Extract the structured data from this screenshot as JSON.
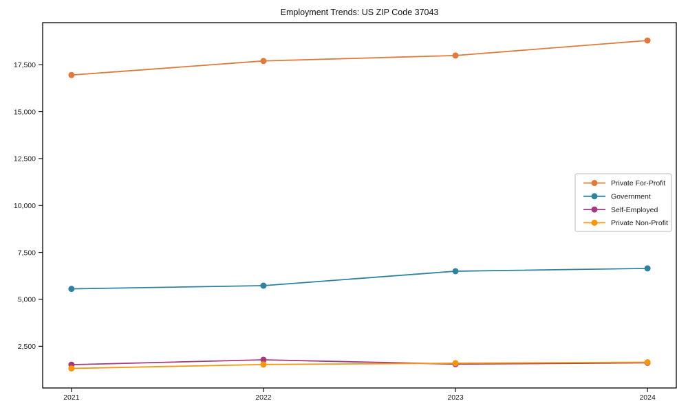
{
  "chart_data": {
    "type": "line",
    "title": "Employment Trends: US ZIP Code 37043",
    "xlabel": "",
    "ylabel": "",
    "x": [
      2021,
      2022,
      2023,
      2024
    ],
    "x_tick_labels": [
      "2021",
      "2022",
      "2023",
      "2024"
    ],
    "y_ticks": [
      2500,
      5000,
      7500,
      10000,
      12500,
      15000,
      17500
    ],
    "y_tick_labels": [
      "2,500",
      "5,000",
      "7,500",
      "10,000",
      "12,500",
      "15,000",
      "17,500"
    ],
    "xlim": [
      2020.85,
      2024.15
    ],
    "ylim": [
      280,
      19740
    ],
    "grid": false,
    "legend_position": "center right",
    "frame_color": "#000000",
    "text_color": "#1a1a1a",
    "legend_border_color": "#b8b8b8",
    "series": [
      {
        "name": "Private For-Profit",
        "color": "#e0793e",
        "values": [
          16950,
          17700,
          17990,
          18790
        ]
      },
      {
        "name": "Government",
        "color": "#2e82a0",
        "values": [
          5560,
          5730,
          6500,
          6650
        ]
      },
      {
        "name": "Self-Employed",
        "color": "#a23a7d",
        "values": [
          1520,
          1780,
          1550,
          1620
        ]
      },
      {
        "name": "Private Non-Profit",
        "color": "#f5960b",
        "values": [
          1320,
          1530,
          1600,
          1650
        ]
      }
    ]
  }
}
